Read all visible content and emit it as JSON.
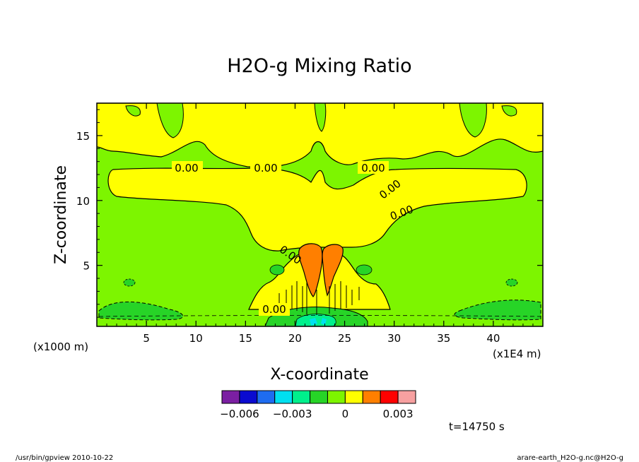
{
  "chart_data": {
    "type": "contour",
    "title": "H2O-g Mixing Ratio",
    "xlabel": "X-coordinate",
    "ylabel": "Z-coordinate",
    "x_unit_left": "(x1000 m)",
    "x_unit_right": "(x1E4 m)",
    "x_ticks": [
      "5",
      "10",
      "15",
      "20",
      "25",
      "30",
      "35",
      "40"
    ],
    "y_ticks": [
      "5",
      "10",
      "15"
    ],
    "xlim": [
      0,
      45
    ],
    "ylim": [
      0.3,
      17.5
    ],
    "contour_labels": [
      "0.00",
      "0.00",
      "0.00",
      "0.00",
      "0.00",
      "0.00",
      "0.00"
    ],
    "colorbar": {
      "colors": [
        "#7b1fa2",
        "#0a0ad0",
        "#1e6cf0",
        "#00e0f0",
        "#00f08c",
        "#27d427",
        "#7df500",
        "#ffff00",
        "#ff7f00",
        "#ff0000",
        "#f7a0a0"
      ],
      "labels": [
        "−0.006",
        "−0.003",
        "0",
        "0.003"
      ]
    },
    "time_label": "t=14750 s",
    "footer_left": "/usr/bin/gpview  2010-10-22",
    "footer_right": "arare-earth_H2O-g.nc@H2O-g"
  }
}
